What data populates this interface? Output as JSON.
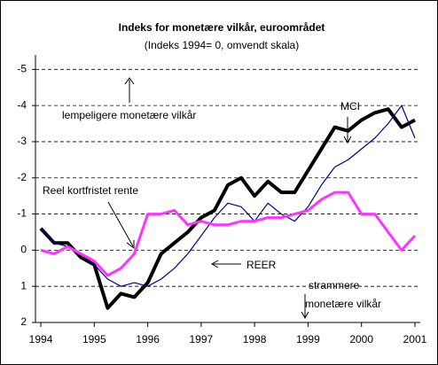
{
  "chart_data": {
    "type": "line",
    "title": "Indeks for monetære vilkår, euroområdet",
    "subtitle": "(Indeks 1994= 0, omvendt skala)",
    "annotations": [
      "MCI",
      "lempeligere monetære vilkår",
      "Reel kortfristet rente",
      "REER",
      "strammere",
      "monetære vilkår"
    ],
    "x": [
      1994,
      1994.25,
      1994.5,
      1994.75,
      1995,
      1995.25,
      1995.5,
      1995.75,
      1996,
      1996.25,
      1996.5,
      1996.75,
      1997,
      1997.25,
      1997.5,
      1997.75,
      1998,
      1998.25,
      1998.5,
      1998.75,
      1999,
      1999.25,
      1999.5,
      1999.75,
      2000,
      2000.25,
      2000.5,
      2000.75,
      2001
    ],
    "series": [
      {
        "name": "MCI",
        "color": "#000000",
        "width": 4,
        "values": [
          -0.6,
          -0.2,
          -0.2,
          0.2,
          0.4,
          1.6,
          1.2,
          1.3,
          0.9,
          0.1,
          -0.2,
          -0.5,
          -0.9,
          -1.1,
          -1.8,
          -2.0,
          -1.5,
          -1.9,
          -1.6,
          -1.6,
          -2.2,
          -2.8,
          -3.4,
          -3.3,
          -3.6,
          -3.8,
          -3.9,
          -3.4,
          -3.6
        ]
      },
      {
        "name": "REER",
        "color": "#000080",
        "width": 1.2,
        "values": [
          -0.6,
          -0.2,
          -0.1,
          0.1,
          0.4,
          0.8,
          1.0,
          0.9,
          1.0,
          0.8,
          0.5,
          0.1,
          -0.4,
          -0.9,
          -1.3,
          -1.2,
          -0.8,
          -1.3,
          -1.0,
          -0.8,
          -1.2,
          -1.8,
          -2.3,
          -2.5,
          -2.8,
          -3.1,
          -3.5,
          -4.0,
          -3.1
        ]
      },
      {
        "name": "Reel kortfristet rente",
        "color": "#ff33ff",
        "width": 3,
        "values": [
          0,
          0.1,
          -0.1,
          0.1,
          0.3,
          0.7,
          0.5,
          0.1,
          -1.0,
          -1.0,
          -1.1,
          -0.7,
          -0.8,
          -0.7,
          -0.7,
          -0.8,
          -0.8,
          -0.9,
          -0.9,
          -1.0,
          -1.1,
          -1.4,
          -1.6,
          -1.6,
          -1.0,
          -1.0,
          -0.5,
          0.0,
          -0.4
        ]
      }
    ],
    "xlim": [
      1993.9,
      2001.1
    ],
    "xticks": [
      1994,
      1995,
      1996,
      1997,
      1998,
      1999,
      2000,
      2001
    ],
    "ylim": [
      2,
      -5.4
    ],
    "yticks": [
      -5,
      -4,
      -3,
      -2,
      -1,
      0,
      1,
      2
    ],
    "grid": true
  }
}
